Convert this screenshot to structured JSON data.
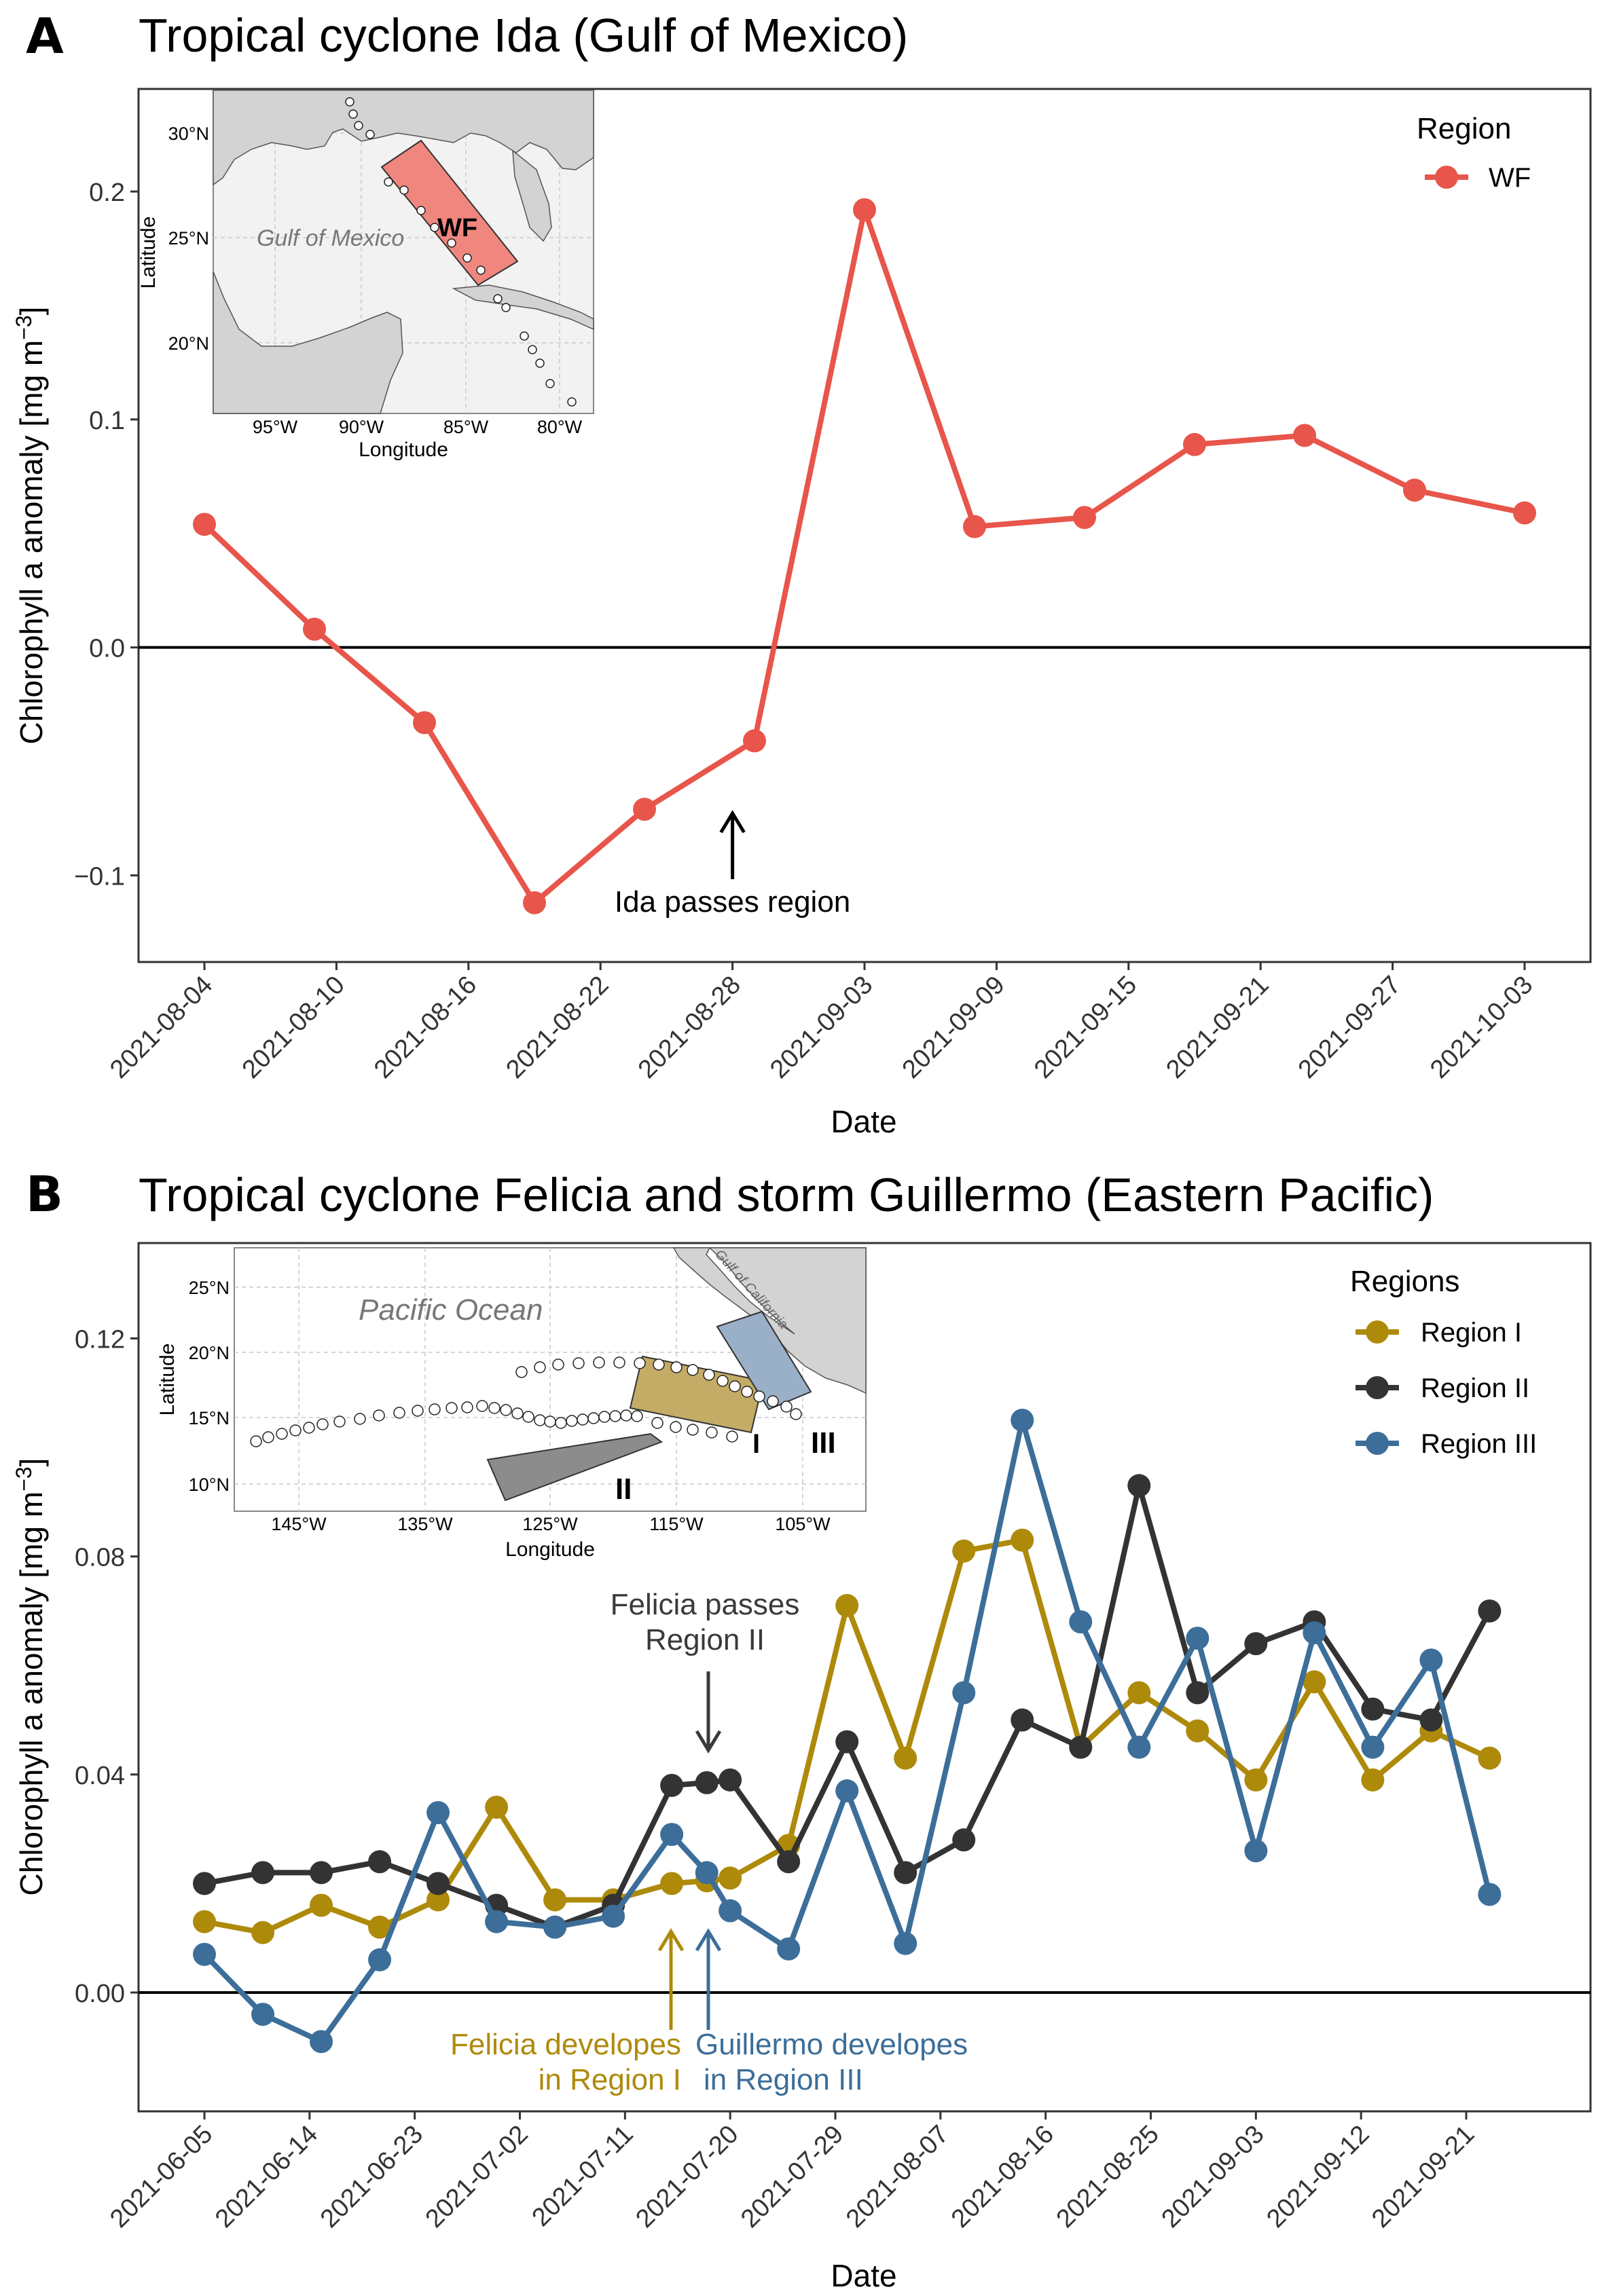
{
  "chart_data": [
    {
      "type": "line",
      "panel_label": "A",
      "title": "Tropical cyclone Ida (Gulf of Mexico)",
      "xlabel": "Date",
      "ylabel": "Chlorophyll a anomaly [mg m",
      "ylabel_sup": "−3",
      "ylabel_close": "]",
      "x_start": "2021-08-04",
      "x_end": "2021-10-03",
      "x_ticks": [
        "2021-08-04",
        "2021-08-10",
        "2021-08-16",
        "2021-08-22",
        "2021-08-28",
        "2021-09-03",
        "2021-09-09",
        "2021-09-15",
        "2021-09-21",
        "2021-09-27",
        "2021-10-03"
      ],
      "ylim": [
        -0.138,
        0.245
      ],
      "y_ticks": [
        -0.1,
        0.0,
        0.1,
        0.2
      ],
      "y_tick_labels": [
        "−0.1",
        "0.0",
        "0.1",
        "0.2"
      ],
      "legend_title": "Region",
      "series": [
        {
          "name": "WF",
          "color": "#E8554A",
          "x": [
            "2021-08-04",
            "2021-08-09",
            "2021-08-14",
            "2021-08-19",
            "2021-08-24",
            "2021-08-29",
            "2021-09-03",
            "2021-09-08",
            "2021-09-13",
            "2021-09-18",
            "2021-09-23",
            "2021-09-28",
            "2021-10-03"
          ],
          "values": [
            0.054,
            0.008,
            -0.033,
            -0.112,
            -0.071,
            -0.041,
            0.192,
            0.053,
            0.057,
            0.089,
            0.093,
            0.069,
            0.059
          ]
        }
      ],
      "annotations": [
        {
          "text": "Ida passes region",
          "date": "2021-08-28",
          "color": "#000000"
        }
      ],
      "inset": {
        "xlabel": "Longitude",
        "ylabel": "Latitude",
        "ocean_label": "Gulf of Mexico",
        "region_label": "WF",
        "lon_ticks": [
          "95°W",
          "90°W",
          "85°W",
          "80°W"
        ],
        "lat_ticks": [
          "20°N",
          "25°N",
          "30°N"
        ]
      }
    },
    {
      "type": "line",
      "panel_label": "B",
      "title": "Tropical cyclone Felicia and storm Guillermo (Eastern Pacific)",
      "xlabel": "Date",
      "ylabel": "Chlorophyll a anomaly [mg m",
      "ylabel_sup": "−3",
      "ylabel_close": "]",
      "x_start": "2021-06-05",
      "x_end": "2021-09-26",
      "x_ticks": [
        "2021-06-05",
        "2021-06-14",
        "2021-06-23",
        "2021-07-02",
        "2021-07-11",
        "2021-07-20",
        "2021-07-29",
        "2021-08-07",
        "2021-08-16",
        "2021-08-25",
        "2021-09-03",
        "2021-09-12",
        "2021-09-21"
      ],
      "ylim": [
        -0.0218,
        0.1375
      ],
      "y_ticks": [
        0.0,
        0.04,
        0.08,
        0.12
      ],
      "y_tick_labels": [
        "0.00",
        "0.04",
        "0.08",
        "0.12"
      ],
      "legend_title": "Regions",
      "dates": [
        "2021-06-05",
        "2021-06-10",
        "2021-06-15",
        "2021-06-20",
        "2021-06-25",
        "2021-06-30",
        "2021-07-05",
        "2021-07-10",
        "2021-07-15",
        "2021-07-18",
        "2021-07-20",
        "2021-07-25",
        "2021-07-30",
        "2021-08-04",
        "2021-08-09",
        "2021-08-14",
        "2021-08-19",
        "2021-08-24",
        "2021-08-29",
        "2021-09-03",
        "2021-09-08",
        "2021-09-13",
        "2021-09-18",
        "2021-09-23"
      ],
      "series": [
        {
          "name": "Region I",
          "color": "#AE8A0B",
          "values": [
            0.013,
            0.011,
            0.016,
            0.012,
            0.017,
            0.034,
            0.017,
            0.017,
            0.02,
            0.0205,
            0.021,
            0.027,
            0.071,
            0.043,
            0.081,
            0.083,
            0.045,
            0.055,
            0.048,
            0.039,
            0.057,
            0.039,
            0.048,
            0.043
          ]
        },
        {
          "name": "Region II",
          "color": "#333333",
          "values": [
            0.02,
            0.022,
            0.022,
            0.024,
            0.02,
            0.016,
            0.012,
            0.016,
            0.038,
            0.0385,
            0.039,
            0.024,
            0.046,
            0.022,
            0.028,
            0.05,
            0.045,
            0.093,
            0.055,
            0.064,
            0.068,
            0.052,
            0.05,
            0.07
          ]
        },
        {
          "name": "Region III",
          "color": "#3C6E99",
          "values": [
            0.007,
            -0.004,
            -0.009,
            0.006,
            0.033,
            0.013,
            0.012,
            0.014,
            0.029,
            0.022,
            0.015,
            0.008,
            0.037,
            0.009,
            0.055,
            0.105,
            0.068,
            0.045,
            0.065,
            0.026,
            0.066,
            0.045,
            0.061,
            0.018
          ]
        }
      ],
      "annotations": [
        {
          "text_line1": "Felicia passes",
          "text_line2": "Region II",
          "date": "2021-07-18",
          "color": "#3A3A3A"
        },
        {
          "text_line1": "Felicia developes",
          "text_line2": "in Region I",
          "date": "2021-07-16",
          "color": "#AE8A0B"
        },
        {
          "text_line1": "Guillermo developes",
          "text_line2": "in Region III",
          "date": "2021-07-18",
          "color": "#3C6E99"
        }
      ],
      "inset": {
        "xlabel": "Longitude",
        "ylabel": "Latitude",
        "ocean_label": "Pacific Ocean",
        "gulf_label": "Gulf of California",
        "region_labels": [
          "I",
          "II",
          "III"
        ],
        "lon_ticks": [
          "145°W",
          "135°W",
          "125°W",
          "115°W",
          "105°W"
        ],
        "lat_ticks": [
          "10°N",
          "15°N",
          "20°N",
          "25°N"
        ]
      }
    }
  ]
}
